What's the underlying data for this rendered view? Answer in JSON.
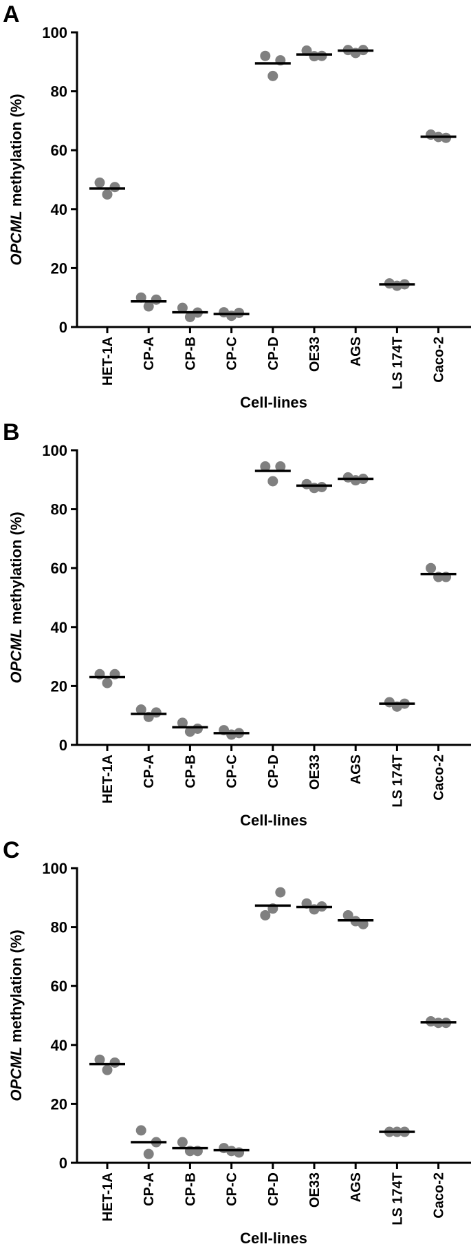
{
  "chart_data": [
    {
      "panel": "A",
      "type": "scatter",
      "ylabel_italic": "OPCML",
      "ylabel_rest": " methylation (%)",
      "xlabel": "Cell-lines",
      "ylim": [
        0,
        100
      ],
      "yticks": [
        0,
        20,
        40,
        60,
        80,
        100
      ],
      "categories": [
        "HET-1A",
        "CP-A",
        "CP-B",
        "CP-C",
        "CP-D",
        "OE33",
        "AGS",
        "LS 174T",
        "Caco-2"
      ],
      "points": [
        [
          49,
          47.5,
          45
        ],
        [
          10,
          9.3,
          7
        ],
        [
          6.5,
          4.9,
          3.4
        ],
        [
          5,
          4.8,
          3.8
        ],
        [
          92,
          90.5,
          85.2
        ],
        [
          93.8,
          92,
          91.9
        ],
        [
          94,
          94,
          93
        ],
        [
          14.8,
          14.5,
          14
        ],
        [
          65.3,
          64.2,
          64.5
        ]
      ],
      "means": [
        47,
        8.7,
        5,
        4.4,
        89.5,
        92.5,
        93.8,
        14.5,
        64.6
      ]
    },
    {
      "panel": "B",
      "type": "scatter",
      "ylabel_italic": "OPCML",
      "ylabel_rest": " methylation (%)",
      "xlabel": "Cell-lines",
      "ylim": [
        0,
        100
      ],
      "yticks": [
        0,
        20,
        40,
        60,
        80,
        100
      ],
      "categories": [
        "HET-1A",
        "CP-A",
        "CP-B",
        "CP-C",
        "CP-D",
        "OE33",
        "AGS",
        "LS 174T",
        "Caco-2"
      ],
      "points": [
        [
          24,
          24,
          21
        ],
        [
          12,
          11,
          9.5
        ],
        [
          7.5,
          5.5,
          4.5
        ],
        [
          5,
          4,
          3.5
        ],
        [
          94.5,
          94.5,
          89.5
        ],
        [
          88.5,
          87.5,
          87.2
        ],
        [
          90.8,
          90.3,
          89.8
        ],
        [
          14.5,
          14,
          13
        ],
        [
          60,
          57,
          57
        ]
      ],
      "means": [
        23,
        10.5,
        6,
        4,
        93,
        88,
        90.3,
        14,
        58
      ]
    },
    {
      "panel": "C",
      "type": "scatter",
      "ylabel_italic": "OPCML",
      "ylabel_rest": " methylation (%)",
      "xlabel": "Cell-lines",
      "ylim": [
        0,
        100
      ],
      "yticks": [
        0,
        20,
        40,
        60,
        80,
        100
      ],
      "categories": [
        "HET-1A",
        "CP-A",
        "CP-B",
        "CP-C",
        "CP-D",
        "OE33",
        "AGS",
        "LS 174T",
        "Caco-2"
      ],
      "points": [
        [
          35,
          34,
          31.5
        ],
        [
          11,
          7,
          3
        ],
        [
          7,
          4,
          4
        ],
        [
          5,
          3.5,
          4
        ],
        [
          84,
          91.8,
          86.3
        ],
        [
          88,
          87,
          86
        ],
        [
          84,
          81,
          82
        ],
        [
          10.5,
          10.5,
          10.5
        ],
        [
          48,
          47.5,
          47.5
        ]
      ],
      "means": [
        33.5,
        7,
        5,
        4.3,
        87.3,
        86.8,
        82.3,
        10.5,
        47.7
      ]
    }
  ],
  "colors": {
    "point": "#808080",
    "mean": "#000000",
    "axis": "#000000"
  }
}
